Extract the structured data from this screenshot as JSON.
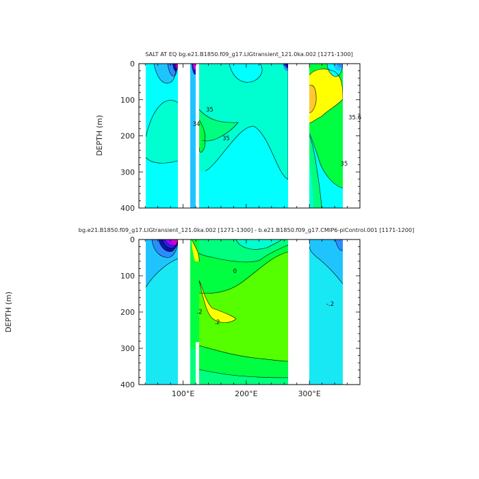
{
  "colors": {
    "purple": "#9b00ff",
    "magenta": "#d000d0",
    "blue": "#1e30ff",
    "navy": "#0a14a8",
    "midblue": "#2a8cff",
    "ltblue": "#1fc4ff",
    "cyan": "#00ffff",
    "teal": "#00ffd0",
    "aqua": "#18e8f4",
    "spring": "#00ff7f",
    "green": "#00ff40",
    "lime": "#55ff00",
    "yellow": "#ffff00",
    "orange": "#ffc830",
    "white": "#ffffff"
  },
  "chart_data": [
    {
      "type": "heatmap",
      "subtype": "filled-contour",
      "title": "SALT AT EQ bg.e21.B1850.f09_g17.LIGtransient_121.0ka.002 [1271-1300]",
      "ylabel": "DEPTH (m)",
      "y_ticks": [
        "0",
        "100",
        "200",
        "300",
        "400"
      ],
      "ylim": [
        400,
        0
      ],
      "xlim": [
        30,
        380
      ],
      "contour_labels": [
        {
          "text": "35",
          "x": 142,
          "y": 128
        },
        {
          "text": "34",
          "x": 121,
          "y": 168
        },
        {
          "text": "35",
          "x": 168,
          "y": 208
        },
        {
          "text": "35.6",
          "x": 372,
          "y": 150
        },
        {
          "text": "35",
          "x": 355,
          "y": 278
        }
      ]
    },
    {
      "type": "heatmap",
      "subtype": "filled-contour",
      "title": "bg.e21.B1850.f09_g17.LIGtransient_121.0ka.002 [1271-1300] - b.e21.B1850.f09_g17.CMIP6-piControl.001 [1171-1200]",
      "ylabel": "DEPTH (m)",
      "y_ticks": [
        "0",
        "100",
        "200",
        "300",
        "400"
      ],
      "x_ticks": [
        "100°E",
        "200°E",
        "300°E"
      ],
      "ylim": [
        400,
        0
      ],
      "xlim": [
        30,
        380
      ],
      "contour_labels": [
        {
          "text": "0",
          "x": 182,
          "y": 88
        },
        {
          "text": ".2",
          "x": 126,
          "y": 200
        },
        {
          "text": ".2",
          "x": 154,
          "y": 228
        },
        {
          "text": "-.2",
          "x": 333,
          "y": 178
        }
      ]
    }
  ]
}
